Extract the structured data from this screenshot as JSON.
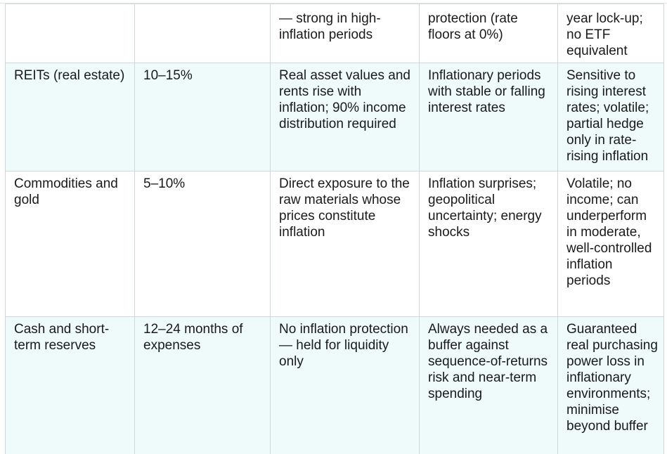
{
  "table": {
    "rows": [
      {
        "asset": "",
        "allocation": "",
        "rationale": "— strong in high-inflation periods",
        "best_conditions": "protection (rate floors at 0%)",
        "risks": "year lock-up; no ETF equivalent"
      },
      {
        "asset": "REITs (real estate)",
        "allocation": "10–15%",
        "rationale": "Real asset values and rents rise with inflation; 90% income distribution required",
        "best_conditions": "Inflationary periods with stable or falling interest rates",
        "risks": "Sensitive to rising interest rates; volatile; partial hedge only in rate-rising inflation"
      },
      {
        "asset": "Commodities and gold",
        "allocation": "5–10%",
        "rationale": "Direct exposure to the raw materials whose prices constitute inflation",
        "best_conditions": "Inflation surprises; geopolitical uncertainty; energy shocks",
        "risks": "Volatile; no income; can underperform in moderate, well-controlled inflation periods"
      },
      {
        "asset": "Cash and short-term reserves",
        "allocation": "12–24 months of expenses",
        "rationale": "No inflation protection — held for liquidity only",
        "best_conditions": "Always needed as a buffer against sequence-of-returns risk and near-term spending",
        "risks": "Guaranteed real purchasing power loss in inflationary environments; minimise beyond buffer"
      }
    ]
  }
}
